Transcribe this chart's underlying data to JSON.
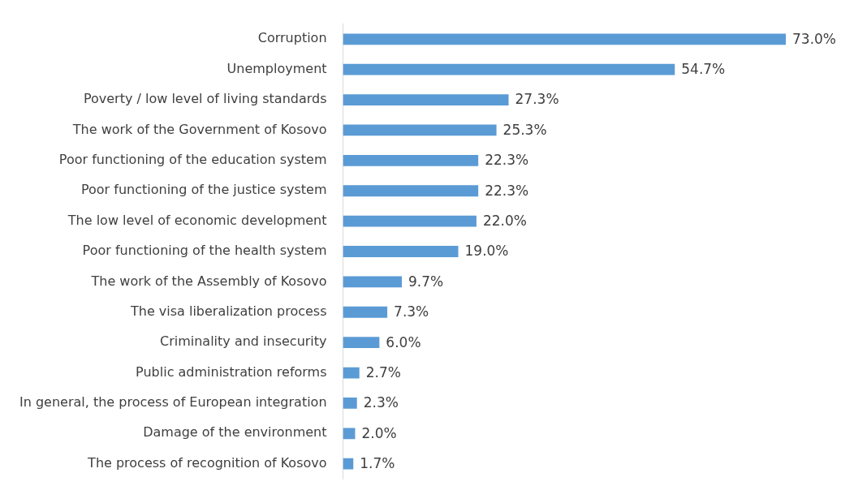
{
  "chart_data": {
    "type": "bar",
    "orientation": "horizontal",
    "categories": [
      "Corruption",
      "Unemployment",
      "Poverty / low level of living standards",
      "The work of the Government of Kosovo",
      "Poor functioning of the education system",
      "Poor functioning of the justice system",
      "The low level of economic development",
      "Poor functioning of the health system",
      "The work of the Assembly of Kosovo",
      "The visa liberalization process",
      "Criminality and insecurity",
      "Public administration reforms",
      "In general, the process of European integration",
      "Damage of the environment",
      "The process of recognition of Kosovo"
    ],
    "values": [
      73.0,
      54.7,
      27.3,
      25.3,
      22.3,
      22.3,
      22.0,
      19.0,
      9.7,
      7.3,
      6.0,
      2.7,
      2.3,
      2.0,
      1.7
    ],
    "value_labels": [
      "73.0%",
      "54.7%",
      "27.3%",
      "25.3%",
      "22.3%",
      "22.3%",
      "22.0%",
      "19.0%",
      "9.7%",
      "7.3%",
      "6.0%",
      "2.7%",
      "2.3%",
      "2.0%",
      "1.7%"
    ],
    "color": "#5b9bd5"
  }
}
